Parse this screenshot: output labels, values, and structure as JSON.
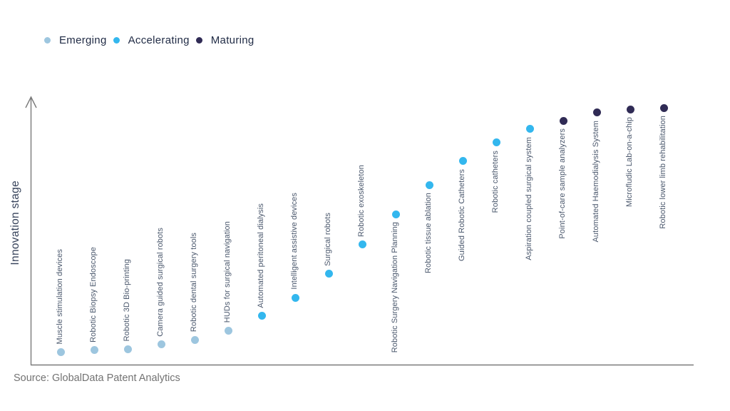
{
  "legend": {
    "items": [
      {
        "label": "Emerging",
        "stage_key": "emerging"
      },
      {
        "label": "Accelerating",
        "stage_key": "accelerating"
      },
      {
        "label": "Maturing",
        "stage_key": "maturing"
      }
    ]
  },
  "colors": {
    "emerging": "#9dc6df",
    "accelerating": "#33b7ee",
    "maturing": "#302b55",
    "axis_line": "#7a7a7a"
  },
  "axis": {
    "y_label": "Innovation stage"
  },
  "source": {
    "text": "Source: GlobalData Patent Analytics"
  },
  "chart_data": {
    "type": "scatter",
    "title": "",
    "xlabel": "",
    "ylabel": "Innovation stage",
    "ylim": [
      0,
      100
    ],
    "grid": false,
    "legend_position": "top-left",
    "x_axis_ticks": "none",
    "y_axis_ticks": "none",
    "points": [
      {
        "label": "Muscle stimulation devices",
        "stage": "Emerging",
        "stage_score": 5.0
      },
      {
        "label": "Robotic Biopsy Endoscope",
        "stage": "Emerging",
        "stage_score": 5.6
      },
      {
        "label": "Robotic 3D Bio-printing",
        "stage": "Emerging",
        "stage_score": 6.1
      },
      {
        "label": "Camera guided surgical robots",
        "stage": "Emerging",
        "stage_score": 7.8
      },
      {
        "label": "Robotic dental surgery tools",
        "stage": "Emerging",
        "stage_score": 9.7
      },
      {
        "label": "HUDs for surgical navigation",
        "stage": "Emerging",
        "stage_score": 13.3
      },
      {
        "label": "Automated peritoneal dialysis",
        "stage": "Accelerating",
        "stage_score": 18.9
      },
      {
        "label": "Intelligent assistive devices",
        "stage": "Accelerating",
        "stage_score": 26.1
      },
      {
        "label": "Surgical robots",
        "stage": "Accelerating",
        "stage_score": 35.3
      },
      {
        "label": "Robotic exoskeleton",
        "stage": "Accelerating",
        "stage_score": 46.7
      },
      {
        "label": "Robotic Surgery Navigation Planning",
        "stage": "Accelerating",
        "stage_score": 58.6
      },
      {
        "label": "Robotic tissue ablation",
        "stage": "Accelerating",
        "stage_score": 70.0
      },
      {
        "label": "Guided Robotic Catheters",
        "stage": "Accelerating",
        "stage_score": 79.2
      },
      {
        "label": "Robotic catheters",
        "stage": "Accelerating",
        "stage_score": 86.4
      },
      {
        "label": "Aspiration coupled surgical system",
        "stage": "Accelerating",
        "stage_score": 91.7
      },
      {
        "label": "Point-of-care sample analyzers",
        "stage": "Maturing",
        "stage_score": 95.0
      },
      {
        "label": "Automated Haemodialysis System",
        "stage": "Maturing",
        "stage_score": 98.1
      },
      {
        "label": "Microfludic Lab-on-a-chip",
        "stage": "Maturing",
        "stage_score": 99.4
      },
      {
        "label": "Robotic lower limb rehabilitation",
        "stage": "Maturing",
        "stage_score": 100.0
      }
    ]
  }
}
